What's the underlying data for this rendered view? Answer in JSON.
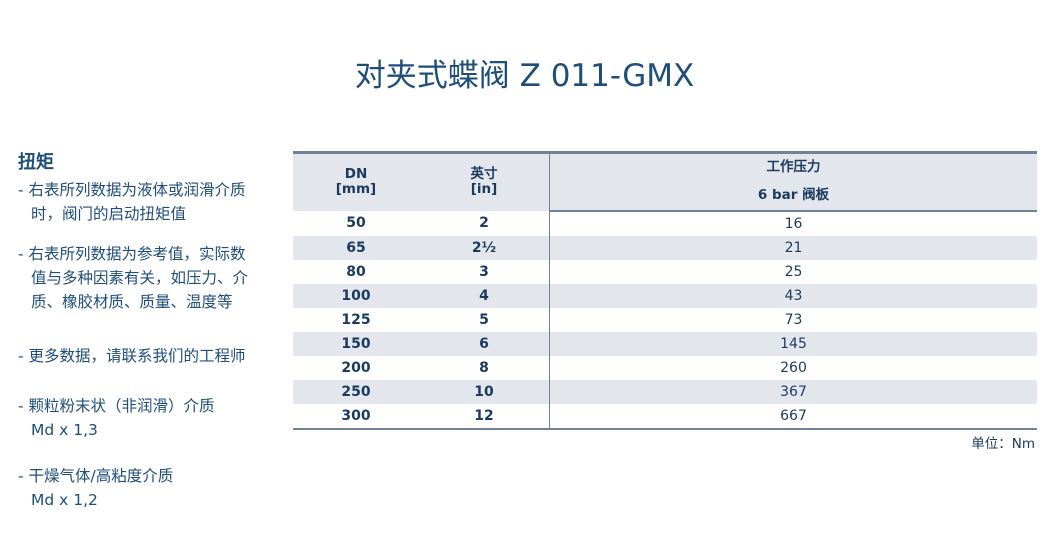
{
  "title": "对夹式蝶阀 Z 011-GMX",
  "sidebar": {
    "heading": "扭矩",
    "notes": [
      [
        "- 右表所列数据为液体或润滑介质",
        "时，阀门的启动扭矩值"
      ],
      [
        "- 右表所列数据为参考值，实际数",
        "值与多种因素有关，如压力、介",
        "质、橡胶材质、质量、温度等"
      ],
      [
        "- 更多数据，请联系我们的工程师"
      ],
      [
        "- 颗粒粉末状（非润滑）介质",
        "Md x 1,3"
      ],
      [
        "- 干燥气体/高粘度介质",
        "Md x 1,2"
      ]
    ]
  },
  "table": {
    "header": {
      "dn": "DN",
      "dn_unit": "[mm]",
      "inch": "英寸",
      "inch_unit": "[in]",
      "pressure_group": "工作压力",
      "pressure": "6 bar 阀板"
    },
    "rows": [
      [
        50,
        "2",
        16
      ],
      [
        65,
        "2½",
        21
      ],
      [
        80,
        "3",
        25
      ],
      [
        100,
        "4",
        43
      ],
      [
        125,
        "5",
        73
      ],
      [
        150,
        "6",
        145
      ],
      [
        200,
        "8",
        260
      ],
      [
        250,
        "10",
        367
      ],
      [
        300,
        "12",
        667
      ]
    ],
    "unit": "单位：Nm"
  }
}
